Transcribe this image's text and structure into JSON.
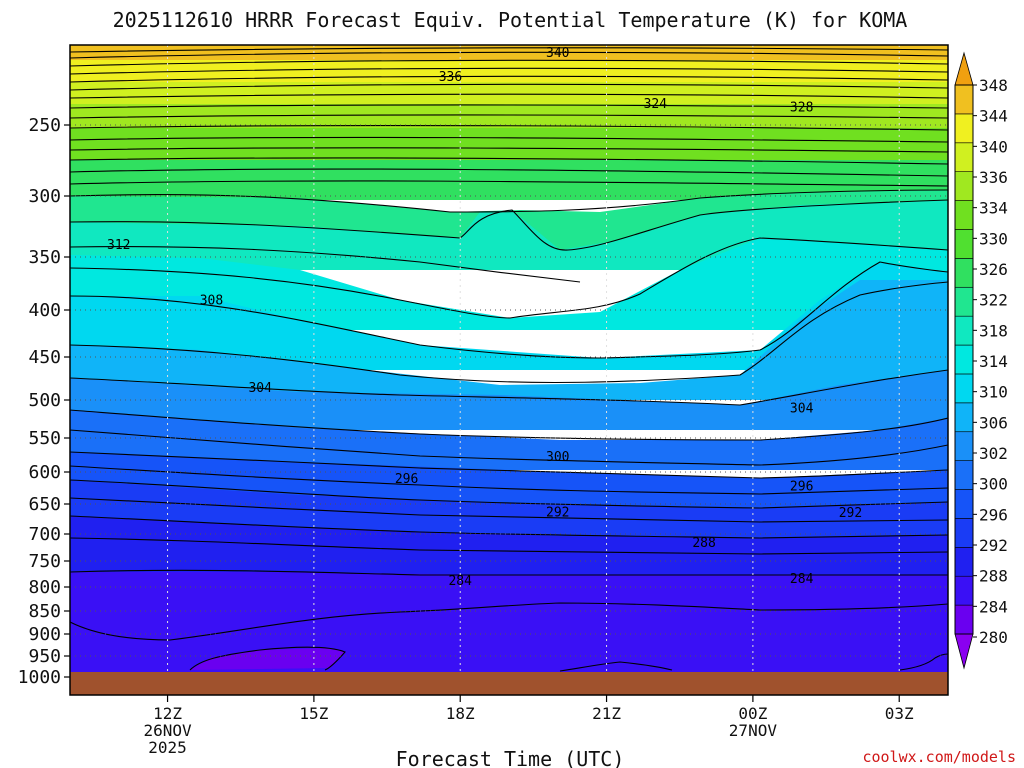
{
  "chart_data": {
    "type": "contour",
    "title": "2025112610 HRRR Forecast Equiv. Potential Temperature (K) for KOMA",
    "xlabel": "Forecast Time (UTC)",
    "ylabel": "",
    "credit": "coolwx.com/models",
    "y_ticks": [
      "250",
      "300",
      "350",
      "400",
      "450",
      "500",
      "550",
      "600",
      "650",
      "700",
      "750",
      "800",
      "850",
      "900",
      "950",
      "1000"
    ],
    "y_tick_values": [
      250,
      300,
      350,
      400,
      450,
      500,
      550,
      600,
      650,
      700,
      750,
      800,
      850,
      900,
      950,
      1000
    ],
    "ylim": [
      200,
      1025
    ],
    "x_range_hours": [
      10.0,
      28.0
    ],
    "x_ticks": [
      {
        "hour": 12,
        "label": "12Z",
        "sub1": "26NOV",
        "sub2": "2025"
      },
      {
        "hour": 15,
        "label": "15Z",
        "sub1": "",
        "sub2": ""
      },
      {
        "hour": 18,
        "label": "18Z",
        "sub1": "",
        "sub2": ""
      },
      {
        "hour": 21,
        "label": "21Z",
        "sub1": "",
        "sub2": ""
      },
      {
        "hour": 24,
        "label": "00Z",
        "sub1": "27NOV",
        "sub2": ""
      },
      {
        "hour": 27,
        "label": "03Z",
        "sub1": "",
        "sub2": ""
      }
    ],
    "colorbar_levels": [
      280,
      284,
      288,
      292,
      296,
      300,
      302,
      306,
      310,
      314,
      318,
      322,
      326,
      330,
      334,
      336,
      340,
      344,
      348
    ],
    "colorbar_labels": [
      "348",
      "344",
      "340",
      "336",
      "334",
      "330",
      "326",
      "322",
      "318",
      "314",
      "310",
      "306",
      "302",
      "300",
      "296",
      "292",
      "288",
      "284",
      "280"
    ],
    "colorbar_colors": [
      "#6a00f0",
      "#3a10f5",
      "#2020f0",
      "#1a3cf5",
      "#1654f8",
      "#1a70f8",
      "#1a90f8",
      "#10b4f8",
      "#00d8f0",
      "#00e8e0",
      "#10e8c0",
      "#20e690",
      "#30e060",
      "#50e030",
      "#70e020",
      "#a0e820",
      "#d0f020",
      "#f0f020",
      "#f0c020"
    ],
    "ground_color": "#a0522d",
    "contour_labels": [
      {
        "text": "340",
        "hour": 20.0,
        "pressure": 205
      },
      {
        "text": "336",
        "hour": 17.8,
        "pressure": 220
      },
      {
        "text": "324",
        "hour": 22.0,
        "pressure": 237
      },
      {
        "text": "328",
        "hour": 25.0,
        "pressure": 239
      },
      {
        "text": "312",
        "hour": 11.0,
        "pressure": 340
      },
      {
        "text": "308",
        "hour": 12.9,
        "pressure": 391
      },
      {
        "text": "304",
        "hour": 13.9,
        "pressure": 486
      },
      {
        "text": "304",
        "hour": 25.0,
        "pressure": 511
      },
      {
        "text": "300",
        "hour": 20.0,
        "pressure": 578
      },
      {
        "text": "296",
        "hour": 16.9,
        "pressure": 611
      },
      {
        "text": "296",
        "hour": 25.0,
        "pressure": 623
      },
      {
        "text": "292",
        "hour": 20.0,
        "pressure": 664
      },
      {
        "text": "292",
        "hour": 26.0,
        "pressure": 665
      },
      {
        "text": "288",
        "hour": 23.0,
        "pressure": 717
      },
      {
        "text": "284",
        "hour": 18.0,
        "pressure": 788
      },
      {
        "text": "284",
        "hour": 25.0,
        "pressure": 785
      }
    ]
  }
}
